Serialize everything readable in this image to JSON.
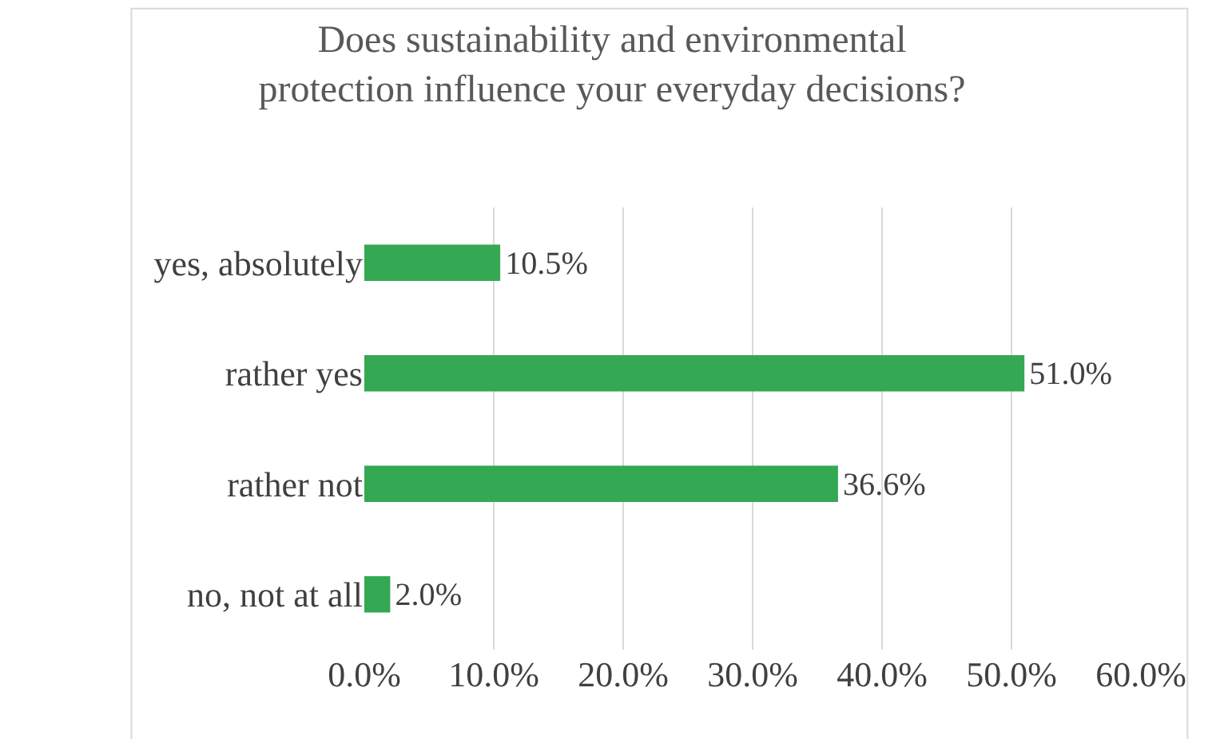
{
  "chart_data": {
    "type": "bar",
    "orientation": "horizontal",
    "title": "Does sustainability and environmental\nprotection influence your everyday decisions?",
    "categories": [
      "yes, absolutely",
      "rather yes",
      "rather not",
      "no, not at all"
    ],
    "values": [
      10.5,
      51.0,
      36.6,
      2.0
    ],
    "value_labels": [
      "10.5%",
      "51.0%",
      "36.6%",
      "2.0%"
    ],
    "color": "#34a853",
    "xlim": [
      0,
      60
    ],
    "xticks": [
      {
        "value": 0,
        "label": "0.0%"
      },
      {
        "value": 10,
        "label": "10.0%"
      },
      {
        "value": 20,
        "label": "20.0%"
      },
      {
        "value": 30,
        "label": "30.0%"
      },
      {
        "value": 40,
        "label": "40.0%"
      },
      {
        "value": 50,
        "label": "50.0%"
      },
      {
        "value": 60,
        "label": "60.0%"
      }
    ],
    "grid": "x"
  }
}
